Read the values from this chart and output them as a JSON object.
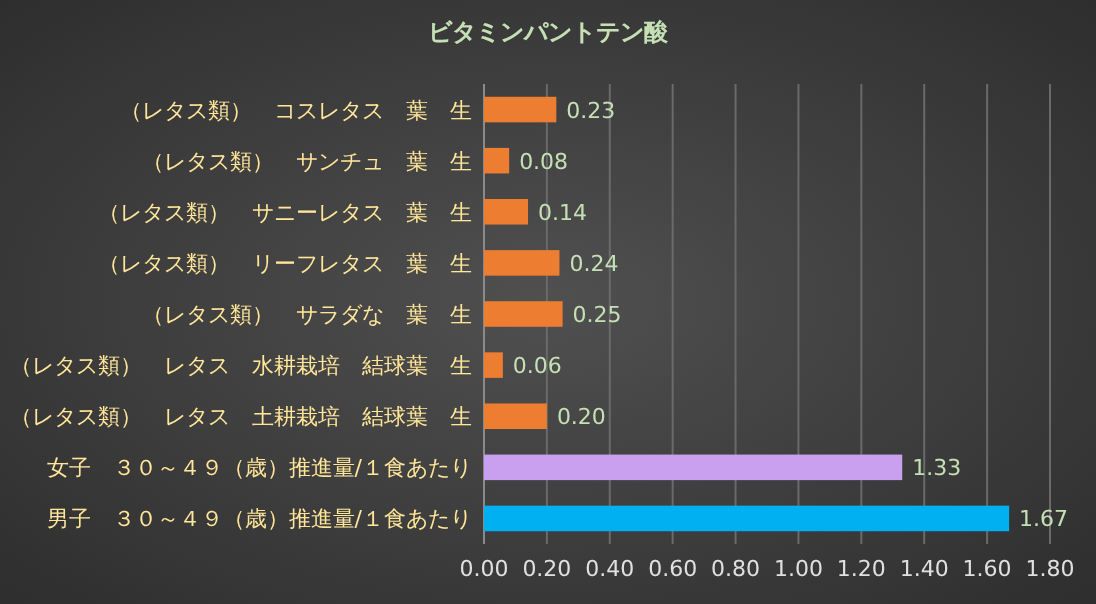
{
  "chart_data": {
    "type": "bar",
    "orientation": "horizontal",
    "title": "ビタミンパントテン酸",
    "categories": [
      "（レタス類）　コスレタス　葉　生",
      "（レタス類）　サンチュ　葉　生",
      "（レタス類）　サニーレタス　葉　生",
      "（レタス類）　リーフレタス　葉　生",
      "（レタス類）　サラダな　葉　生",
      "（レタス類）　レタス　水耕栽培　結球葉　生",
      "（レタス類）　レタス　土耕栽培　結球葉　生",
      "女子　３０～４９（歳）推進量/１食あたり",
      "男子　３０～４９（歳）推進量/１食あたり"
    ],
    "values": [
      0.23,
      0.08,
      0.14,
      0.24,
      0.25,
      0.06,
      0.2,
      1.33,
      1.67
    ],
    "value_labels": [
      "0.23",
      "0.08",
      "0.14",
      "0.24",
      "0.25",
      "0.06",
      "0.20",
      "1.33",
      "1.67"
    ],
    "colors": [
      "#ed7d31",
      "#ed7d31",
      "#ed7d31",
      "#ed7d31",
      "#ed7d31",
      "#ed7d31",
      "#ed7d31",
      "#c9a0f0",
      "#00b0f0"
    ],
    "xlim": [
      0,
      1.8
    ],
    "xticks": [
      {
        "value": 0,
        "label": "0.00"
      },
      {
        "value": 0.2,
        "label": "0.20"
      },
      {
        "value": 0.4,
        "label": "0.40"
      },
      {
        "value": 0.6,
        "label": "0.60"
      },
      {
        "value": 0.8,
        "label": "0.80"
      },
      {
        "value": 1.0,
        "label": "1.00"
      },
      {
        "value": 1.2,
        "label": "1.20"
      },
      {
        "value": 1.4,
        "label": "1.40"
      },
      {
        "value": 1.6,
        "label": "1.60"
      },
      {
        "value": 1.8,
        "label": "1.80"
      }
    ],
    "grid": "x"
  }
}
